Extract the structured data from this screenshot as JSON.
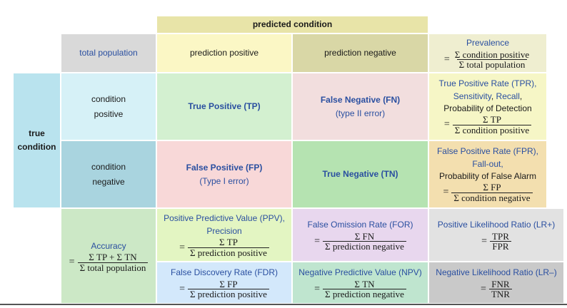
{
  "header": {
    "predicted_condition": "predicted condition"
  },
  "side": {
    "true_condition_line1": "true",
    "true_condition_line2": "condition"
  },
  "top_row": {
    "total_population": "total population",
    "prediction_positive": "prediction positive",
    "prediction_negative": "prediction negative",
    "prevalence": {
      "title": "Prevalence",
      "eq": "=",
      "num": "Σ condition positive",
      "den": "Σ total population"
    }
  },
  "row_pos": {
    "label_line1": "condition",
    "label_line2": "positive",
    "tp": "True Positive (TP)",
    "fn": "False Negative (FN)",
    "fn_note": "(type II error)",
    "tpr": {
      "line1": "True Positive Rate (TPR),",
      "line2_a": "Sensitivity",
      "line2_sep": ", ",
      "line2_b": "Recall",
      "line2_end": ",",
      "line3": "Probability of Detection",
      "eq": "=",
      "num": "Σ TP",
      "den": "Σ condition positive"
    }
  },
  "row_neg": {
    "label_line1": "condition",
    "label_line2": "negative",
    "fp": "False Positive (FP)",
    "fp_note": "(Type I error)",
    "tn": "True Negative (TN)",
    "fpr": {
      "line1": "False Positive Rate (FPR),",
      "line2": "Fall-out,",
      "line3": "Probability of False Alarm",
      "eq": "=",
      "num": "Σ FP",
      "den": "Σ condition negative"
    }
  },
  "metrics": {
    "accuracy": {
      "title": "Accuracy",
      "eq": "=",
      "num": "Σ TP + Σ TN",
      "den": "Σ total population"
    },
    "ppv": {
      "line1": "Positive Predictive Value (PPV),",
      "line2": "Precision",
      "eq": "=",
      "num": "Σ TP",
      "den": "Σ prediction positive"
    },
    "for": {
      "title": "False Omission Rate (FOR)",
      "eq": "=",
      "num": "Σ FN",
      "den": "Σ prediction negative"
    },
    "lr_pos": {
      "title": "Positive Likelihood Ratio (LR+)",
      "eq": "=",
      "num": "TPR",
      "den": "FPR"
    },
    "fdr": {
      "title": "False Discovery Rate (FDR)",
      "eq": "=",
      "num": "Σ FP",
      "den": "Σ prediction positive"
    },
    "npv": {
      "title": "Negative Predictive Value (NPV)",
      "eq": "=",
      "num": "Σ TN",
      "den": "Σ prediction negative"
    },
    "lr_neg": {
      "title": "Negative Likelihood Ratio (LR–)",
      "eq": "=",
      "num": "FNR",
      "den": "TNR"
    }
  },
  "colors": {
    "gray": "#d9d9d9",
    "header_olive": "#e8e4a8",
    "pos_yellow": "#fbf7c5",
    "neg_olive": "#d9d7a6",
    "prevalence": "#efeed0",
    "side_blue": "#b9e3ee",
    "cond_pos": "#d6f1f7",
    "cond_neg": "#a9d4df",
    "tp": "#d3f0d0",
    "fn": "#f2dede",
    "tpr": "#f6f6c6",
    "fp": "#f8d8d8",
    "tn": "#b5e3b1",
    "fpr": "#f3dfaf",
    "accuracy": "#cce8c6",
    "ppv": "#e3f5c2",
    "for": "#e8d7ee",
    "lr_pos": "#e2e2e2",
    "fdr": "#d3e8fb",
    "npv": "#bfe5cf",
    "lr_neg": "#c9c9c9",
    "text_blue": "#2a4fa0"
  }
}
